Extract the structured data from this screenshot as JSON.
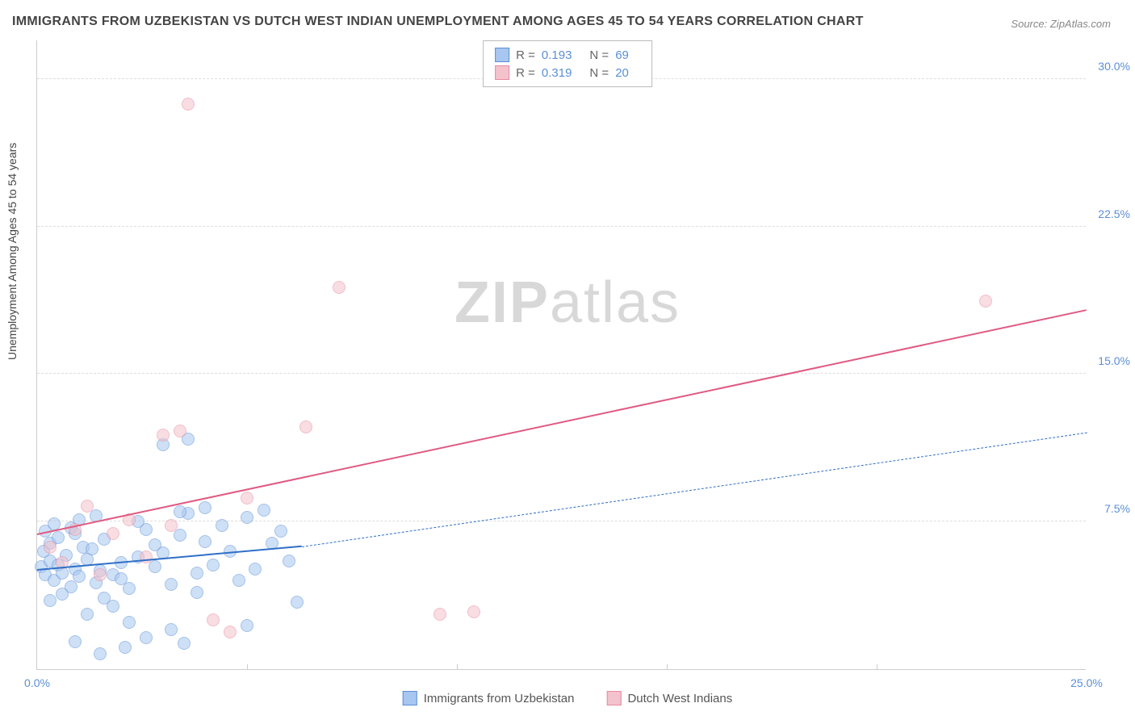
{
  "title": "IMMIGRANTS FROM UZBEKISTAN VS DUTCH WEST INDIAN UNEMPLOYMENT AMONG AGES 45 TO 54 YEARS CORRELATION CHART",
  "source_label": "Source:",
  "source_value": "ZipAtlas.com",
  "y_axis_title": "Unemployment Among Ages 45 to 54 years",
  "watermark_a": "ZIP",
  "watermark_b": "atlas",
  "chart": {
    "type": "scatter",
    "xlim": [
      0,
      25
    ],
    "ylim": [
      0,
      32
    ],
    "xticks": [
      0.0,
      25.0
    ],
    "xtick_labels": [
      "0.0%",
      "25.0%"
    ],
    "xtick_minor": [
      5,
      10,
      15,
      20
    ],
    "yticks": [
      7.5,
      15.0,
      22.5,
      30.0
    ],
    "ytick_labels": [
      "7.5%",
      "15.0%",
      "22.5%",
      "30.0%"
    ],
    "background_color": "#ffffff",
    "grid_color": "#dddddd",
    "axis_color": "#cccccc",
    "point_radius": 8,
    "point_opacity": 0.55,
    "series": [
      {
        "name": "Immigrants from Uzbekistan",
        "color_fill": "#a7c7f0",
        "color_stroke": "#5b8fd6",
        "R": "0.193",
        "N": "69",
        "trend": {
          "x1": 0,
          "y1": 5.0,
          "x2": 6.3,
          "y2": 6.2,
          "style": "solid",
          "width": 2.5,
          "color": "#2f6fc7",
          "extend_x2": 25,
          "extend_y2": 12.0,
          "extend_style": "dashed"
        },
        "points": [
          [
            0.1,
            5.2
          ],
          [
            0.2,
            4.8
          ],
          [
            0.3,
            5.5
          ],
          [
            0.15,
            6.0
          ],
          [
            0.4,
            4.5
          ],
          [
            0.5,
            5.3
          ],
          [
            0.3,
            6.4
          ],
          [
            0.6,
            4.9
          ],
          [
            0.2,
            7.0
          ],
          [
            0.7,
            5.8
          ],
          [
            0.8,
            4.2
          ],
          [
            0.5,
            6.7
          ],
          [
            0.9,
            5.1
          ],
          [
            0.4,
            7.4
          ],
          [
            1.0,
            4.7
          ],
          [
            0.6,
            3.8
          ],
          [
            1.1,
            6.2
          ],
          [
            0.3,
            3.5
          ],
          [
            1.2,
            5.6
          ],
          [
            0.8,
            7.2
          ],
          [
            1.4,
            4.4
          ],
          [
            0.9,
            6.9
          ],
          [
            1.5,
            5.0
          ],
          [
            1.0,
            7.6
          ],
          [
            1.6,
            3.6
          ],
          [
            1.3,
            6.1
          ],
          [
            1.8,
            4.8
          ],
          [
            1.2,
            2.8
          ],
          [
            2.0,
            5.4
          ],
          [
            1.4,
            7.8
          ],
          [
            2.2,
            4.1
          ],
          [
            1.6,
            6.6
          ],
          [
            2.4,
            5.7
          ],
          [
            1.8,
            3.2
          ],
          [
            2.6,
            7.1
          ],
          [
            2.0,
            4.6
          ],
          [
            2.8,
            6.3
          ],
          [
            2.2,
            2.4
          ],
          [
            3.0,
            5.9
          ],
          [
            2.4,
            7.5
          ],
          [
            3.2,
            4.3
          ],
          [
            2.6,
            1.6
          ],
          [
            3.4,
            6.8
          ],
          [
            2.8,
            5.2
          ],
          [
            3.6,
            7.9
          ],
          [
            3.0,
            11.4
          ],
          [
            3.8,
            4.9
          ],
          [
            3.2,
            2.0
          ],
          [
            4.0,
            6.5
          ],
          [
            3.4,
            8.0
          ],
          [
            4.2,
            5.3
          ],
          [
            3.6,
            11.7
          ],
          [
            4.4,
            7.3
          ],
          [
            3.8,
            3.9
          ],
          [
            4.6,
            6.0
          ],
          [
            4.0,
            8.2
          ],
          [
            4.8,
            4.5
          ],
          [
            5.0,
            7.7
          ],
          [
            5.2,
            5.1
          ],
          [
            5.4,
            8.1
          ],
          [
            5.6,
            6.4
          ],
          [
            5.0,
            2.2
          ],
          [
            5.8,
            7.0
          ],
          [
            6.0,
            5.5
          ],
          [
            6.2,
            3.4
          ],
          [
            3.5,
            1.3
          ],
          [
            2.1,
            1.1
          ],
          [
            1.5,
            0.8
          ],
          [
            0.9,
            1.4
          ]
        ]
      },
      {
        "name": "Dutch West Indians",
        "color_fill": "#f4c2cc",
        "color_stroke": "#e88aa0",
        "R": "0.319",
        "N": "20",
        "trend": {
          "x1": 0,
          "y1": 6.8,
          "x2": 25,
          "y2": 18.2,
          "style": "solid",
          "width": 2.5,
          "color": "#e05a82"
        },
        "points": [
          [
            0.3,
            6.2
          ],
          [
            0.6,
            5.4
          ],
          [
            0.9,
            7.1
          ],
          [
            1.2,
            8.3
          ],
          [
            1.5,
            4.8
          ],
          [
            1.8,
            6.9
          ],
          [
            2.2,
            7.6
          ],
          [
            2.6,
            5.7
          ],
          [
            3.0,
            11.9
          ],
          [
            3.4,
            12.1
          ],
          [
            3.6,
            28.7
          ],
          [
            4.2,
            2.5
          ],
          [
            4.6,
            1.9
          ],
          [
            5.0,
            8.7
          ],
          [
            6.4,
            12.3
          ],
          [
            7.2,
            19.4
          ],
          [
            9.6,
            2.8
          ],
          [
            10.4,
            2.9
          ],
          [
            22.6,
            18.7
          ],
          [
            3.2,
            7.3
          ]
        ]
      }
    ]
  },
  "legend_top": {
    "R_label": "R =",
    "N_label": "N ="
  },
  "text_colors": {
    "title": "#444444",
    "source": "#888888",
    "accent": "#5b8fd6",
    "axis_title": "#444444"
  },
  "fontsize": {
    "title": 16,
    "axis_label": 14,
    "legend": 15,
    "source": 13,
    "watermark": 72
  }
}
